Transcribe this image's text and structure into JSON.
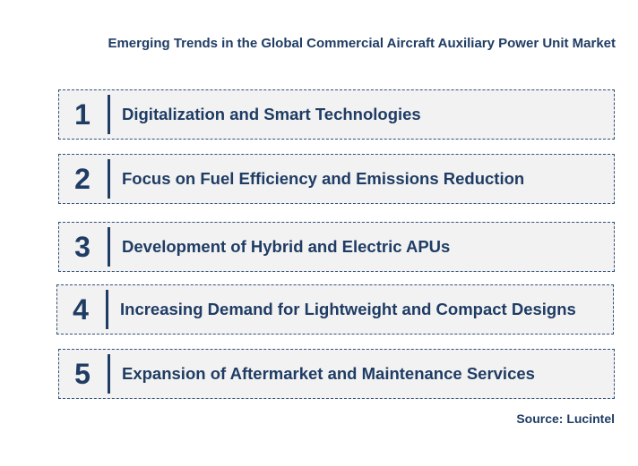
{
  "title": "Emerging Trends in the Global Commercial Aircraft Auxiliary Power Unit Market",
  "trends": [
    {
      "number": "1",
      "text": "Digitalization and Smart Technologies"
    },
    {
      "number": "2",
      "text": "Focus on Fuel Efficiency and Emissions Reduction"
    },
    {
      "number": "3",
      "text": "Development of Hybrid and Electric APUs"
    },
    {
      "number": "4",
      "text": "Increasing Demand for Lightweight and Compact Designs"
    },
    {
      "number": "5",
      "text": "Expansion of Aftermarket and Maintenance Services"
    }
  ],
  "source": "Source: Lucintel",
  "colors": {
    "text": "#1f3c64",
    "box_fill": "#f2f2f2",
    "box_border": "#2f4f78"
  }
}
